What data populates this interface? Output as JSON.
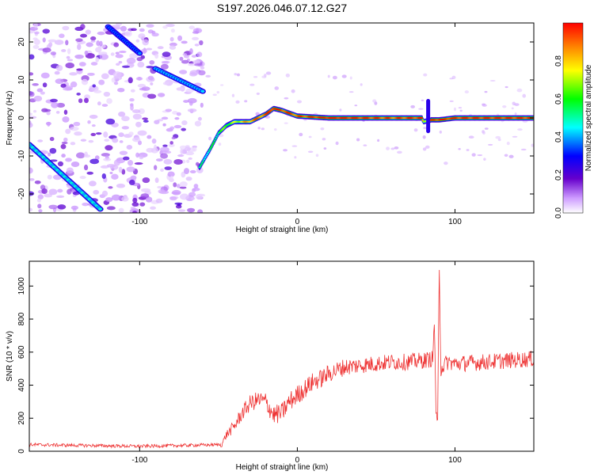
{
  "title": "S197.2026.046.07.12.G27",
  "chart_data": [
    {
      "type": "heatmap",
      "name": "spectrogram",
      "xlabel": "Height of straight line (km)",
      "ylabel": "Frequency (Hz)",
      "xlim": [
        -170,
        150
      ],
      "ylim": [
        -25,
        25
      ],
      "xticks": [
        -100,
        0,
        100
      ],
      "yticks": [
        -20,
        -10,
        0,
        10,
        20
      ],
      "xtick_labels": [
        "-100",
        "0",
        "100"
      ],
      "ytick_labels": [
        "-20",
        "-10",
        "0",
        "10",
        "20"
      ],
      "colorbar": {
        "label": "Normalized spectral amplitude",
        "range": [
          0,
          1
        ],
        "ticks": [
          0.0,
          0.2,
          0.4,
          0.6,
          0.8
        ],
        "tick_labels": [
          "0.0",
          "0.2",
          "0.4",
          "0.6",
          "0.8"
        ],
        "stops": [
          "#ffffff",
          "#cc99ff",
          "#6600cc",
          "#0000ff",
          "#00ffff",
          "#00ff00",
          "#ffff00",
          "#ff8800",
          "#ff0000"
        ]
      },
      "ridge": {
        "x": [
          -62,
          -55,
          -50,
          -45,
          -40,
          -30,
          -20,
          -15,
          -10,
          0,
          20,
          40,
          60,
          79,
          80,
          85,
          90,
          100,
          120,
          150
        ],
        "y": [
          -13,
          -8,
          -4,
          -2,
          -1,
          -1,
          1,
          2.5,
          2,
          0.5,
          0,
          0,
          0,
          0,
          -1,
          -0.5,
          -0.5,
          0,
          0,
          0
        ],
        "amplitude": [
          0.4,
          0.45,
          0.5,
          0.55,
          0.6,
          0.8,
          0.85,
          0.95,
          0.9,
          0.85,
          0.95,
          0.9,
          0.85,
          0.9,
          0.6,
          0.9,
          0.95,
          0.9,
          0.9,
          0.9
        ]
      },
      "diagonal_tracks": [
        {
          "x": [
            -170,
            -125
          ],
          "y": [
            -7,
            -24
          ],
          "amplitude": 0.4
        },
        {
          "x": [
            -90,
            -60
          ],
          "y": [
            13,
            7
          ],
          "amplitude": 0.35
        },
        {
          "x": [
            -120,
            -100
          ],
          "y": [
            24,
            17
          ],
          "amplitude": 0.3
        }
      ],
      "spike": {
        "x": 83,
        "y_range": [
          -4,
          5
        ]
      }
    },
    {
      "type": "line",
      "name": "snr",
      "xlabel": "Height of straight line (km)",
      "ylabel": "SNR (10 * v/v)",
      "xlim": [
        -170,
        150
      ],
      "ylim": [
        0,
        1150
      ],
      "xticks": [
        -100,
        0,
        100
      ],
      "yticks": [
        0,
        200,
        400,
        600,
        800,
        1000
      ],
      "xtick_labels": [
        "-100",
        "0",
        "100"
      ],
      "ytick_labels": [
        "0",
        "200",
        "400",
        "600",
        "800",
        "1000"
      ],
      "color": "#ee3333",
      "envelope": {
        "x": [
          -170,
          -100,
          -48,
          -45,
          -40,
          -35,
          -30,
          -25,
          -20,
          -15,
          -10,
          -5,
          0,
          5,
          10,
          15,
          20,
          30,
          40,
          50,
          60,
          70,
          80,
          86,
          87,
          88,
          89,
          90,
          91,
          95,
          100,
          120,
          150
        ],
        "y": [
          40,
          30,
          40,
          100,
          150,
          230,
          290,
          310,
          300,
          220,
          230,
          300,
          340,
          380,
          420,
          440,
          470,
          510,
          520,
          530,
          540,
          540,
          550,
          560,
          800,
          200,
          150,
          1150,
          500,
          540,
          530,
          540,
          560
        ]
      },
      "noise_amplitude": {
        "x": [
          -170,
          -50,
          -40,
          -20,
          0,
          40,
          150
        ],
        "y": [
          10,
          10,
          40,
          60,
          60,
          50,
          50
        ]
      }
    }
  ]
}
